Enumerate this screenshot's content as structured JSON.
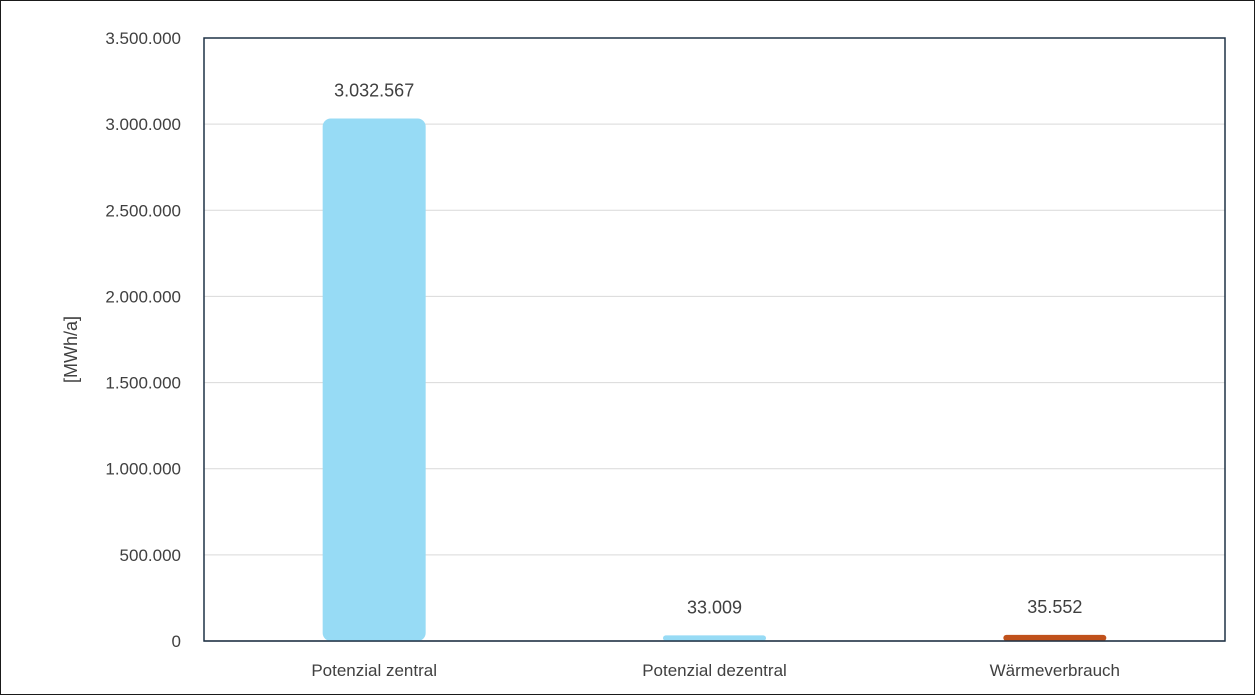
{
  "chart_data": {
    "type": "bar",
    "categories": [
      "Potenzial zentral",
      "Potenzial dezentral",
      "Wärmeverbrauch"
    ],
    "values": [
      3032567,
      33009,
      35552
    ],
    "data_labels": [
      "3.032.567",
      "33.009",
      "35.552"
    ],
    "bar_colors": [
      "#97dbf5",
      "#97dbf5",
      "#c0511b"
    ],
    "title": "",
    "xlabel": "",
    "ylabel": "[MWh/a]",
    "ylim": [
      0,
      3500000
    ],
    "yticks": [
      0,
      500000,
      1000000,
      1500000,
      2000000,
      2500000,
      3000000,
      3500000
    ],
    "ytick_labels": [
      "0",
      "500.000",
      "1.000.000",
      "1.500.000",
      "2.000.000",
      "2.500.000",
      "3.000.000",
      "3.500.000"
    ],
    "grid": true,
    "legend": "none",
    "colors": {
      "gridline": "#d9d9d9",
      "plot_border": "#1f3246",
      "baseline": "#a6a6a6",
      "text": "#404040"
    }
  }
}
